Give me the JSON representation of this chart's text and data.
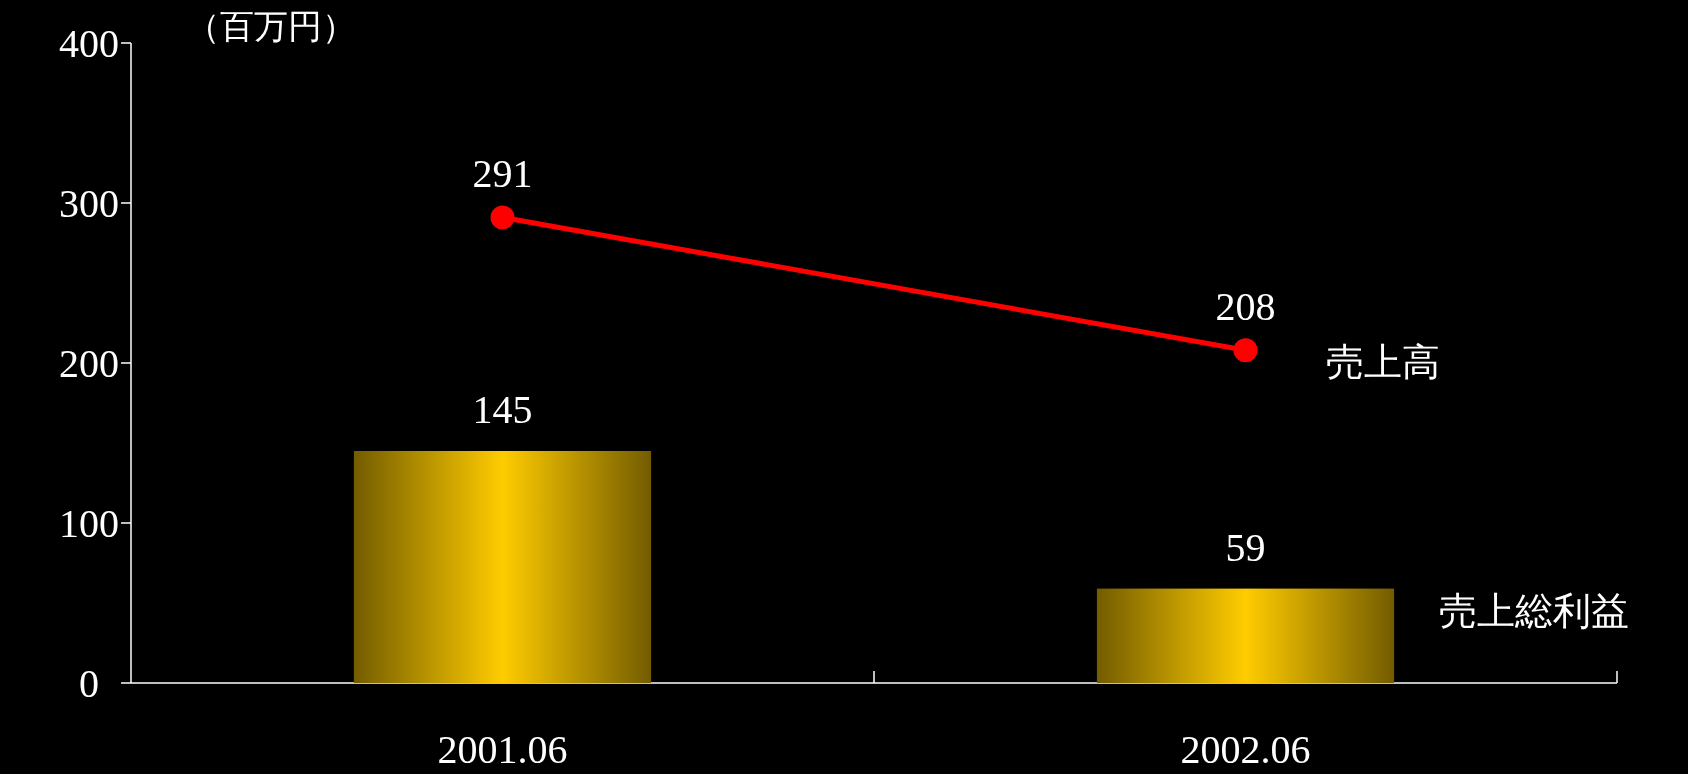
{
  "chart_data": {
    "type": "bar",
    "ylabel": "（百万円）",
    "categories": [
      "2001.06",
      "2002.06"
    ],
    "series": [
      {
        "name": "売上総利益",
        "color": "#ffcc00",
        "values": [
          145,
          59
        ]
      },
      {
        "name": "売上高",
        "type": "line",
        "color": "#ff0000",
        "values": [
          291,
          208
        ]
      }
    ],
    "ylim": [
      0,
      400
    ],
    "yticks": [
      0,
      100,
      200,
      300,
      400
    ],
    "data_labels": true,
    "marker": "circle"
  }
}
